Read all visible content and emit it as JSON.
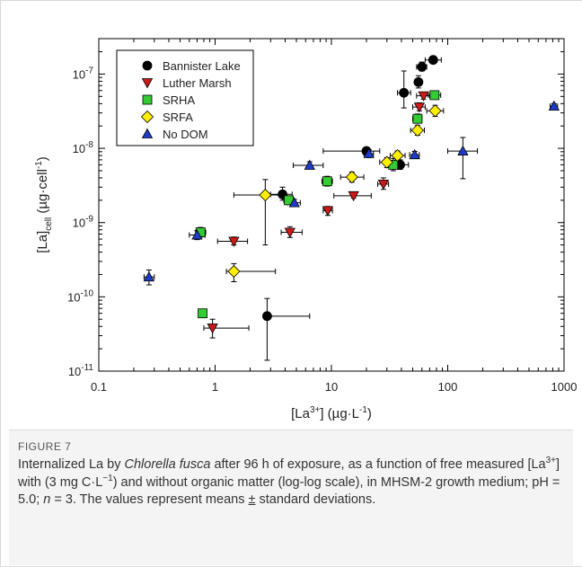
{
  "figure": {
    "label": "FIGURE 7",
    "caption_parts": [
      {
        "t": "Internalized La by ",
        "s": ""
      },
      {
        "t": "Chlorella fusca",
        "s": "i"
      },
      {
        "t": " after 96 h of exposure, as a function of free measured [La",
        "s": ""
      },
      {
        "t": "3+",
        "s": "sup"
      },
      {
        "t": "] with (3 mg C·L",
        "s": ""
      },
      {
        "t": "−1",
        "s": "sup"
      },
      {
        "t": ") and without organic matter (log-log scale), in MHSM-2 growth medium; pH = 5.0; ",
        "s": ""
      },
      {
        "t": "n",
        "s": "i"
      },
      {
        "t": " = 3. The values represent means ",
        "s": ""
      },
      {
        "t": "±",
        "s": "u"
      },
      {
        "t": " standard deviations.",
        "s": ""
      }
    ]
  },
  "chart_data": {
    "type": "scatter",
    "xscale": "log",
    "yscale": "log",
    "xlim": [
      0.1,
      1000
    ],
    "ylim": [
      1e-11,
      3e-07
    ],
    "xlabel_parts": [
      {
        "t": "[La",
        "s": ""
      },
      {
        "t": "3+",
        "s": "sup"
      },
      {
        "t": "] (µg·L",
        "s": ""
      },
      {
        "t": "-1",
        "s": "sup"
      },
      {
        "t": ")",
        "s": ""
      }
    ],
    "ylabel_parts": [
      {
        "t": "[La]",
        "s": ""
      },
      {
        "t": "cell",
        "s": "sub"
      },
      {
        "t": " (µg·cell",
        "s": ""
      },
      {
        "t": "-1",
        "s": "sup"
      },
      {
        "t": ")",
        "s": ""
      }
    ],
    "xticks": [
      {
        "v": 0.1,
        "label": "0.1"
      },
      {
        "v": 1,
        "label": "1"
      },
      {
        "v": 10,
        "label": "10"
      },
      {
        "v": 100,
        "label": "100"
      },
      {
        "v": 1000,
        "label": "1000"
      }
    ],
    "yticks": [
      {
        "v": 1e-11,
        "base": "10",
        "exp": "-11"
      },
      {
        "v": 1e-10,
        "base": "10",
        "exp": "-10"
      },
      {
        "v": 1e-09,
        "base": "10",
        "exp": "-9"
      },
      {
        "v": 1e-08,
        "base": "10",
        "exp": "-8"
      },
      {
        "v": 1e-07,
        "base": "10",
        "exp": "-7"
      }
    ],
    "grid": false,
    "legend_position": "top-left",
    "series": [
      {
        "name": "Bannister Lake",
        "marker": "circle",
        "color": "#000000",
        "points": [
          {
            "x": 2.8,
            "y": 5.5e-11,
            "xerr": [
              2.8,
              6.5
            ],
            "yerr": [
              1.4e-11,
              9.5e-11
            ]
          },
          {
            "x": 3.8,
            "y": 2.4e-09,
            "xerr": [
              3.0,
              4.6
            ],
            "yerr": [
              2e-09,
              3e-09
            ]
          },
          {
            "x": 20,
            "y": 9.2e-09,
            "xerr": [
              8.5,
              26
            ],
            "yerr": [
              8.4e-09,
              1.02e-08
            ]
          },
          {
            "x": 39,
            "y": 6e-09,
            "xerr": [
              32,
              46
            ],
            "yerr": [
              5.2e-09,
              7e-09
            ]
          },
          {
            "x": 42,
            "y": 5.6e-08,
            "xerr": [
              37,
              48
            ],
            "yerr": [
              3.5e-08,
              1.1e-07
            ]
          },
          {
            "x": 56,
            "y": 7.8e-08,
            "xerr": [
              52,
              60
            ],
            "yerr": [
              6.5e-08,
              9.5e-08
            ]
          },
          {
            "x": 60,
            "y": 1.25e-07,
            "xerr": [
              54,
              66
            ],
            "yerr": [
              1.1e-07,
              1.45e-07
            ]
          },
          {
            "x": 75,
            "y": 1.55e-07,
            "xerr": [
              64,
              88
            ],
            "yerr": [
              1.45e-07,
              1.65e-07
            ]
          }
        ]
      },
      {
        "name": "Luther Marsh",
        "marker": "triangle-down",
        "color": "#cc1a1a",
        "points": [
          {
            "x": 0.95,
            "y": 3.8e-11,
            "xerr": [
              0.8,
              1.95
            ],
            "yerr": [
              2.8e-11,
              5e-11
            ]
          },
          {
            "x": 1.45,
            "y": 5.6e-10,
            "xerr": [
              1.05,
              1.9
            ],
            "yerr": [
              5e-10,
              6.4e-10
            ]
          },
          {
            "x": 4.4,
            "y": 7.4e-10,
            "xerr": [
              3.7,
              5.6
            ],
            "yerr": [
              6.3e-10,
              8.8e-10
            ]
          },
          {
            "x": 9.3,
            "y": 1.45e-09,
            "xerr": [
              8.5,
              10.2
            ],
            "yerr": [
              1.25e-09,
              1.65e-09
            ]
          },
          {
            "x": 15.5,
            "y": 2.3e-09,
            "xerr": [
              10.5,
              22
            ],
            "yerr": [
              2.15e-09,
              2.45e-09
            ]
          },
          {
            "x": 28,
            "y": 3.3e-09,
            "xerr": [
              25,
              31
            ],
            "yerr": [
              2.8e-09,
              4e-09
            ]
          },
          {
            "x": 57,
            "y": 3.6e-08,
            "xerr": [
              50,
              64
            ],
            "yerr": [
              3.2e-08,
              4.1e-08
            ]
          },
          {
            "x": 62,
            "y": 5.1e-08,
            "xerr": [
              54,
              70
            ],
            "yerr": [
              4.6e-08,
              5.6e-08
            ]
          }
        ]
      },
      {
        "name": "SRHA",
        "marker": "square",
        "color": "#33cc33",
        "points": [
          {
            "x": 0.78,
            "y": 6e-11,
            "xerr": [
              0.72,
              0.84
            ],
            "yerr": [
              5.3e-11,
              6.7e-11
            ]
          },
          {
            "x": 0.75,
            "y": 7.4e-10,
            "xerr": [
              0.68,
              0.83
            ],
            "yerr": [
              6.4e-10,
              8.6e-10
            ]
          },
          {
            "x": 4.3,
            "y": 2e-09,
            "xerr": [
              3.9,
              4.7
            ],
            "yerr": [
              1.8e-09,
              2.2e-09
            ]
          },
          {
            "x": 9.2,
            "y": 3.6e-09,
            "xerr": [
              8.3,
              10.2
            ],
            "yerr": [
              3.1e-09,
              4.2e-09
            ]
          },
          {
            "x": 34,
            "y": 6e-09,
            "xerr": [
              30,
              38
            ],
            "yerr": [
              5e-09,
              7.3e-09
            ]
          },
          {
            "x": 55,
            "y": 2.5e-08,
            "xerr": [
              50,
              60
            ],
            "yerr": [
              2.2e-08,
              2.9e-08
            ]
          },
          {
            "x": 77,
            "y": 5.2e-08,
            "xerr": [
              68,
              87
            ],
            "yerr": [
              4.6e-08,
              5.9e-08
            ]
          }
        ]
      },
      {
        "name": "SRFA",
        "marker": "diamond",
        "color": "#ffee00",
        "points": [
          {
            "x": 1.45,
            "y": 2.2e-10,
            "xerr": [
              1.25,
              3.3
            ],
            "yerr": [
              1.6e-10,
              2.8e-10
            ]
          },
          {
            "x": 2.7,
            "y": 2.35e-09,
            "xerr": [
              1.45,
              4.0
            ],
            "yerr": [
              5e-10,
              3.8e-09
            ]
          },
          {
            "x": 15,
            "y": 4.1e-09,
            "xerr": [
              12,
              19
            ],
            "yerr": [
              3.5e-09,
              4.8e-09
            ]
          },
          {
            "x": 30,
            "y": 6.5e-09,
            "xerr": [
              26,
              34
            ],
            "yerr": [
              5.5e-09,
              7.5e-09
            ]
          },
          {
            "x": 37,
            "y": 8e-09,
            "xerr": [
              32,
              43
            ],
            "yerr": [
              7e-09,
              9.2e-09
            ]
          },
          {
            "x": 55,
            "y": 1.75e-08,
            "xerr": [
              48,
              63
            ],
            "yerr": [
              1.5e-08,
              2.05e-08
            ]
          },
          {
            "x": 78,
            "y": 3.2e-08,
            "xerr": [
              66,
              92
            ],
            "yerr": [
              2.7e-08,
              3.8e-08
            ]
          }
        ]
      },
      {
        "name": "No DOM",
        "marker": "triangle-up",
        "color": "#1f3bcc",
        "points": [
          {
            "x": 0.27,
            "y": 1.85e-10,
            "xerr": [
              0.245,
              0.3
            ],
            "yerr": [
              1.45e-10,
              2.3e-10
            ]
          },
          {
            "x": 0.7,
            "y": 6.8e-10,
            "xerr": [
              0.6,
              0.82
            ],
            "yerr": [
              5.9e-10,
              7.8e-10
            ]
          },
          {
            "x": 4.8,
            "y": 1.85e-09,
            "xerr": [
              4.2,
              5.4
            ],
            "yerr": [
              1.65e-09,
              2.05e-09
            ]
          },
          {
            "x": 6.5,
            "y": 5.9e-09,
            "xerr": [
              4.7,
              8.5
            ],
            "yerr": [
              5.3e-09,
              6.6e-09
            ]
          },
          {
            "x": 21,
            "y": 8.5e-09,
            "xerr": [
              19,
              23
            ],
            "yerr": [
              7.5e-09,
              9.6e-09
            ]
          },
          {
            "x": 52,
            "y": 8.2e-09,
            "xerr": [
              47,
              57
            ],
            "yerr": [
              7.4e-09,
              9.1e-09
            ]
          },
          {
            "x": 135,
            "y": 9.2e-09,
            "xerr": [
              100,
              180
            ],
            "yerr": [
              3.9e-09,
              1.4e-08
            ]
          },
          {
            "x": 820,
            "y": 3.7e-08,
            "xerr": [
              760,
              880
            ],
            "yerr": [
              3.4e-08,
              4e-08
            ]
          }
        ]
      }
    ]
  }
}
